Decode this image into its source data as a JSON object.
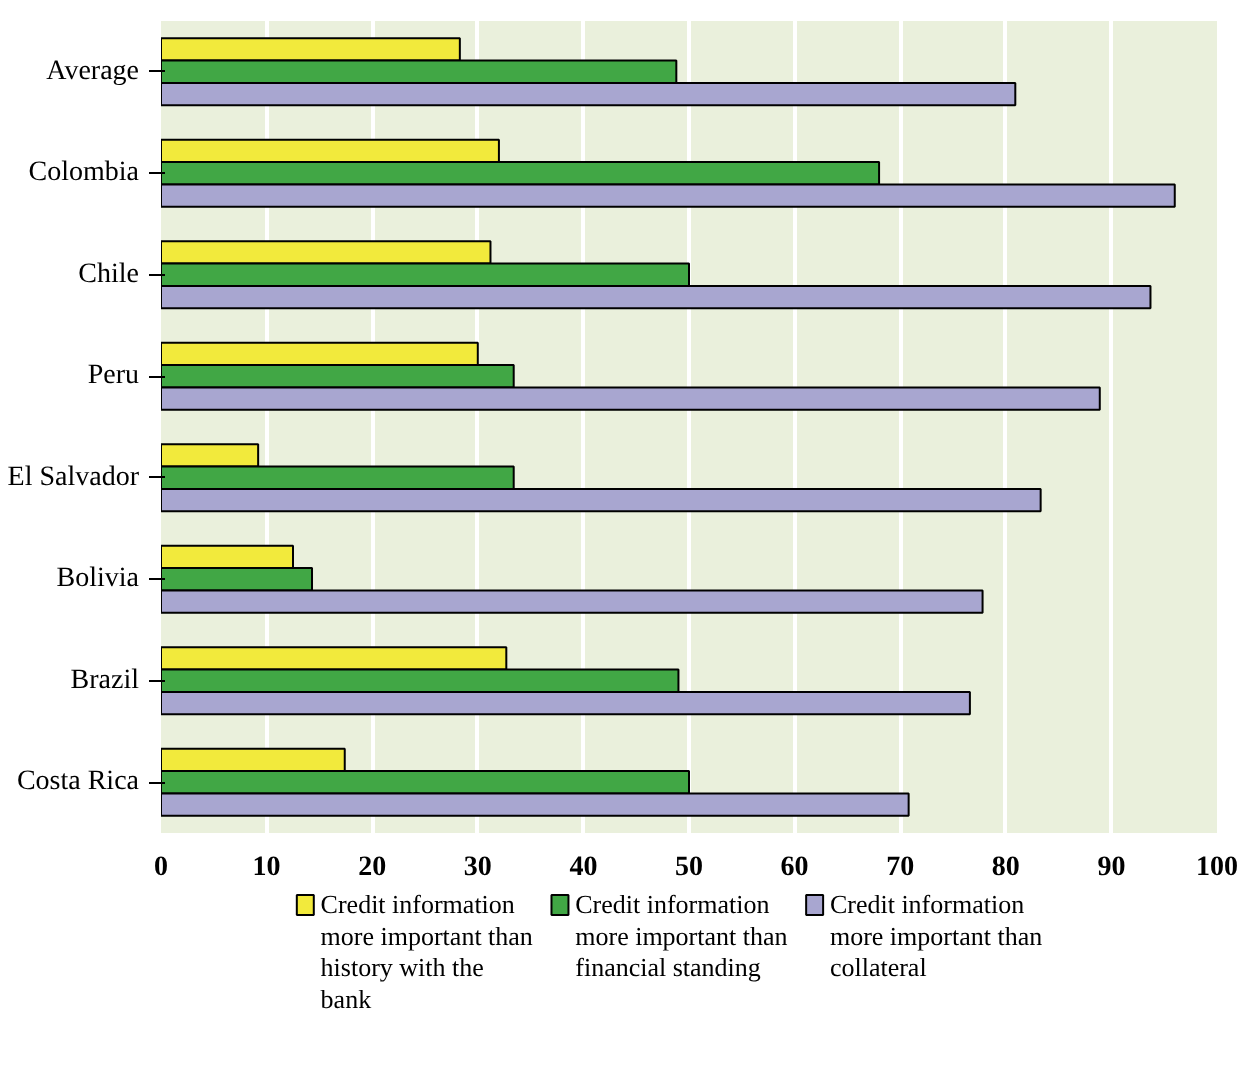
{
  "chart_data": {
    "type": "bar",
    "orientation": "horizontal",
    "categories": [
      "Average",
      "Colombia",
      "Chile",
      "Peru",
      "El Salvador",
      "Bolivia",
      "Brazil",
      "Costa Rica"
    ],
    "series": [
      {
        "name": "Credit information more important than history with the bank",
        "color": "#f2ea3c",
        "values": [
          28.3,
          32.0,
          31.2,
          30.0,
          9.2,
          12.5,
          32.7,
          17.4
        ]
      },
      {
        "name": "Credit information more important than financial standing",
        "color": "#41a745",
        "values": [
          48.8,
          68.0,
          50.0,
          33.4,
          33.4,
          14.3,
          49.0,
          50.0
        ]
      },
      {
        "name": "Credit information more important than collateral",
        "color": "#a8a6d0",
        "values": [
          80.9,
          96.0,
          93.7,
          88.9,
          83.3,
          77.8,
          76.6,
          70.8
        ]
      }
    ],
    "xlim": [
      0,
      100
    ],
    "xticks": [
      0,
      10,
      20,
      30,
      40,
      50,
      60,
      70,
      80,
      90,
      100
    ],
    "grid": "x",
    "legend": "bottom"
  }
}
